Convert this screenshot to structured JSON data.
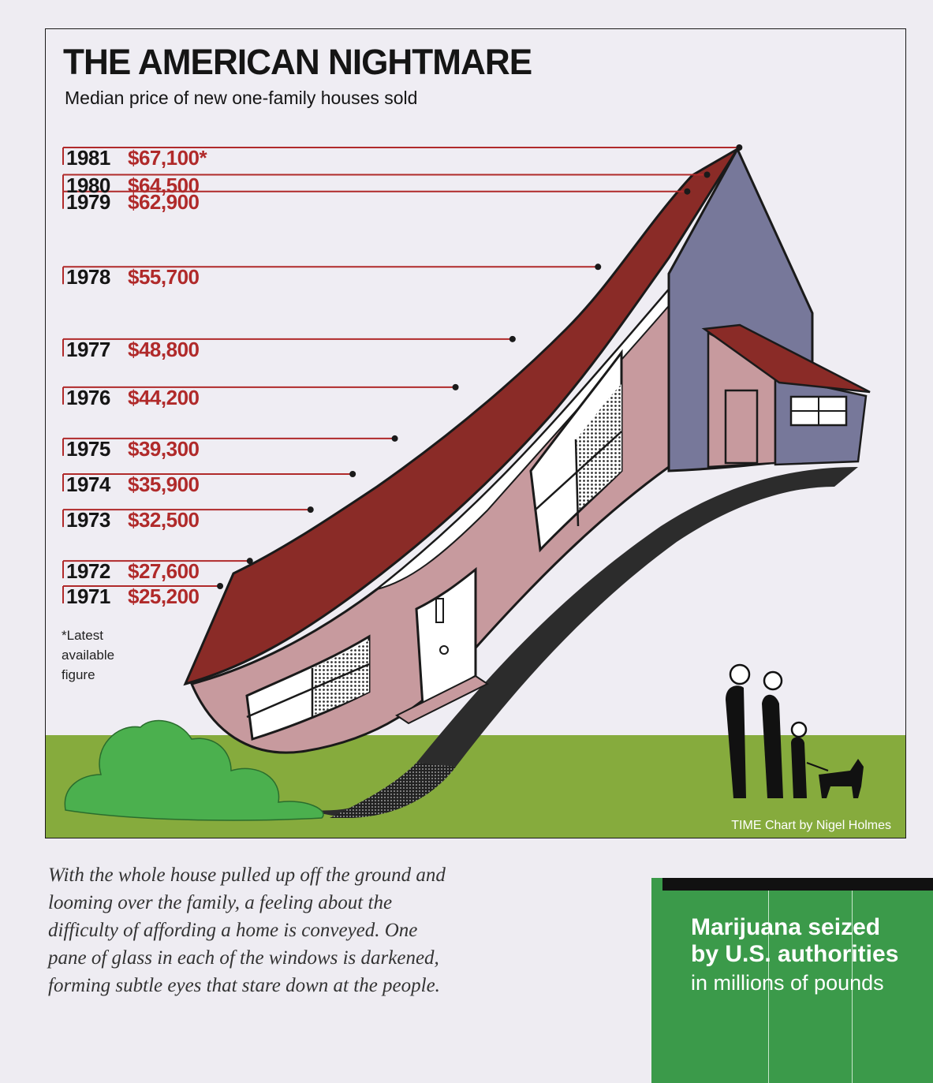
{
  "chart_data": {
    "type": "line",
    "title": "THE AMERICAN NIGHTMARE",
    "subtitle": "Median price of new one-family houses sold",
    "x": [
      "1971",
      "1972",
      "1973",
      "1974",
      "1975",
      "1976",
      "1977",
      "1978",
      "1979",
      "1980",
      "1981"
    ],
    "values": [
      25200,
      27600,
      32500,
      35900,
      39300,
      44200,
      48800,
      55700,
      62900,
      64500,
      67100
    ],
    "price_labels": [
      "$25,200",
      "$27,600",
      "$32,500",
      "$35,900",
      "$39,300",
      "$44,200",
      "$48,800",
      "$55,700",
      "$62,900",
      "$64,500",
      "$67,100"
    ],
    "latest_marker": "*",
    "footnote": "*Latest available figure",
    "credit": "TIME Chart by Nigel Holmes",
    "colors": {
      "roof": "#8a2b27",
      "wall": "#c79a9e",
      "gable": "#77789a",
      "grass": "#86ab3d",
      "bush": "#4bb04e",
      "price": "#b02a2a"
    }
  },
  "caption": "With the whole house pulled up off the ground and looming over the family, a feeling about the difficulty of affording a home is conveyed. One pane of glass in each of the windows is darkened, forming subtle eyes that stare down at the people.",
  "next_chart": {
    "title_line1": "Marijuana seized",
    "title_line2": "by U.S. authorities",
    "subtitle": "in millions of pounds"
  }
}
